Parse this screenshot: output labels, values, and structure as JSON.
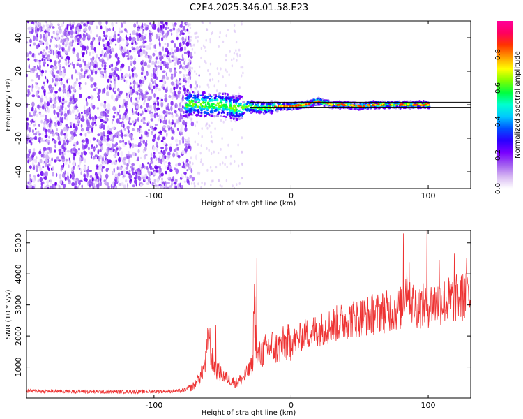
{
  "title": "C2E4.2025.346.01.58.E23",
  "chart_data": [
    {
      "type": "heatmap",
      "name": "spectrogram",
      "xlabel": "Height of straight line (km)",
      "ylabel": "Frequency (Hz)",
      "xlim": [
        -193,
        131
      ],
      "ylim": [
        -50,
        50
      ],
      "xticks": [
        -100,
        0,
        100
      ],
      "yticks": [
        -40,
        -20,
        0,
        20,
        40
      ],
      "xtick_labels": [
        "-100",
        "0",
        "100"
      ],
      "ytick_labels": [
        "-40",
        "-20",
        "0",
        "20",
        "40"
      ],
      "noise_region_x": [
        -193,
        -73
      ],
      "signal_region_x": [
        -78,
        101
      ],
      "signal_freq_track": [
        {
          "x": -75,
          "f": 1
        },
        {
          "x": -60,
          "f": 0
        },
        {
          "x": -50,
          "f": 0
        },
        {
          "x": -40,
          "f": -2
        },
        {
          "x": -30,
          "f": -1
        },
        {
          "x": -20,
          "f": -2
        },
        {
          "x": -10,
          "f": -1
        },
        {
          "x": 0,
          "f": -1
        },
        {
          "x": 10,
          "f": 0
        },
        {
          "x": 20,
          "f": 2
        },
        {
          "x": 30,
          "f": 0
        },
        {
          "x": 40,
          "f": 0
        },
        {
          "x": 50,
          "f": -1
        },
        {
          "x": 60,
          "f": 0
        },
        {
          "x": 80,
          "f": 0
        },
        {
          "x": 100,
          "f": 0
        }
      ],
      "reference_lines_hz": [
        1.5,
        -1.5
      ],
      "colorbar": {
        "label": "Normalized spectral amplitude",
        "range": [
          0,
          1
        ],
        "ticks": [
          0.0,
          0.2,
          0.4,
          0.6,
          0.8
        ],
        "tick_labels": [
          "0.0",
          "0.2",
          "0.4",
          "0.6",
          "0.8"
        ],
        "colors": [
          "#ffffff",
          "#d7b8f2",
          "#a15cf0",
          "#7a00ff",
          "#2a00ff",
          "#0050ff",
          "#00c8ff",
          "#00ffd0",
          "#00ff40",
          "#7fff00",
          "#ffff00",
          "#ff9900",
          "#ff3300",
          "#ff0060",
          "#ff0099"
        ]
      }
    },
    {
      "type": "line",
      "name": "snr",
      "xlabel": "Height of straight line (km)",
      "ylabel": "SNR (10 * v/v)",
      "xlim": [
        -193,
        131
      ],
      "ylim": [
        0,
        5400
      ],
      "xticks": [
        -100,
        0,
        100
      ],
      "yticks": [
        1000,
        2000,
        3000,
        4000,
        5000
      ],
      "xtick_labels": [
        "-100",
        "0",
        "100"
      ],
      "ytick_labels": [
        "1000",
        "2000",
        "3000",
        "4000",
        "5000"
      ],
      "color": "#ee3333",
      "series": [
        {
          "name": "SNR",
          "x": [
            -193,
            -160,
            -130,
            -100,
            -80,
            -72,
            -66,
            -62,
            -60,
            -58,
            -55,
            -50,
            -45,
            -40,
            -35,
            -30,
            -28,
            -27,
            -25,
            -20,
            -15,
            -10,
            -5,
            0,
            5,
            10,
            20,
            30,
            40,
            50,
            60,
            70,
            80,
            85,
            88,
            90,
            95,
            100,
            105,
            110,
            115,
            120,
            125,
            131
          ],
          "y": [
            230,
            210,
            200,
            210,
            230,
            350,
            700,
            1200,
            2100,
            1300,
            900,
            750,
            600,
            500,
            650,
            900,
            1100,
            3300,
            1300,
            1500,
            1700,
            1600,
            1750,
            1800,
            1900,
            2050,
            2200,
            2350,
            2500,
            2600,
            2700,
            2800,
            2900,
            3800,
            3100,
            3000,
            2950,
            3000,
            3050,
            3100,
            3150,
            3200,
            3250,
            3300
          ]
        }
      ],
      "spikes": [
        {
          "x": -55,
          "y": 2350
        },
        {
          "x": -25,
          "y": 4500
        },
        {
          "x": 82,
          "y": 5300
        },
        {
          "x": 99,
          "y": 5400
        },
        {
          "x": 108,
          "y": 4450
        },
        {
          "x": 119,
          "y": 4650
        },
        {
          "x": 128,
          "y": 4500
        }
      ]
    }
  ]
}
